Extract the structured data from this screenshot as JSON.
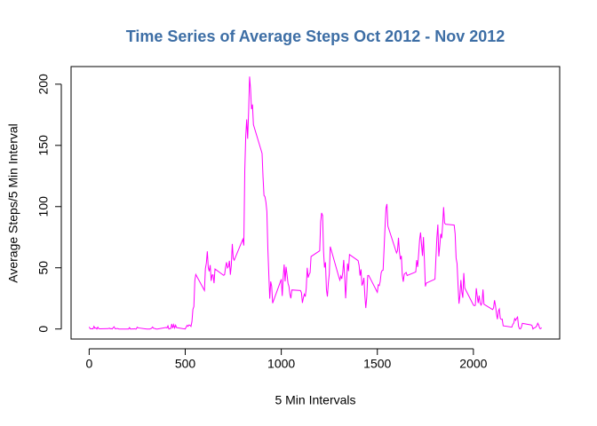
{
  "chart_data": {
    "type": "line",
    "title": "Time Series of Average Steps Oct 2012 - Nov 2012",
    "x_label": "5 Min Intervals",
    "y_label": "Average Steps/5 Min Interval",
    "xlim": [
      -94.2,
      2449.2
    ],
    "ylim": [
      -8.2,
      214.4
    ],
    "xticks": [
      0,
      500,
      1000,
      1500,
      2000
    ],
    "yticks": [
      0,
      50,
      100,
      150,
      200
    ],
    "series": [
      {
        "color": "#ff00ff",
        "x": [
          0,
          5,
          10,
          15,
          20,
          25,
          30,
          35,
          40,
          45,
          50,
          55,
          100,
          105,
          110,
          115,
          120,
          125,
          130,
          135,
          140,
          145,
          150,
          155,
          200,
          205,
          210,
          215,
          220,
          225,
          230,
          235,
          240,
          245,
          250,
          255,
          300,
          305,
          310,
          315,
          320,
          325,
          330,
          335,
          340,
          345,
          350,
          355,
          400,
          405,
          410,
          415,
          420,
          425,
          430,
          435,
          440,
          445,
          450,
          455,
          500,
          505,
          510,
          515,
          520,
          525,
          530,
          535,
          540,
          545,
          550,
          555,
          600,
          605,
          610,
          615,
          620,
          625,
          630,
          635,
          640,
          645,
          650,
          655,
          700,
          705,
          710,
          715,
          720,
          725,
          730,
          735,
          740,
          745,
          750,
          755,
          800,
          805,
          810,
          815,
          820,
          825,
          830,
          835,
          840,
          845,
          850,
          855,
          900,
          905,
          910,
          915,
          920,
          925,
          930,
          935,
          940,
          945,
          950,
          955,
          1000,
          1005,
          1010,
          1015,
          1020,
          1025,
          1030,
          1035,
          1040,
          1045,
          1050,
          1055,
          1100,
          1105,
          1110,
          1115,
          1120,
          1125,
          1130,
          1135,
          1140,
          1145,
          1150,
          1155,
          1200,
          1205,
          1210,
          1215,
          1220,
          1225,
          1230,
          1235,
          1240,
          1245,
          1250,
          1255,
          1300,
          1305,
          1310,
          1315,
          1320,
          1325,
          1330,
          1335,
          1340,
          1345,
          1350,
          1355,
          1400,
          1405,
          1410,
          1415,
          1420,
          1425,
          1430,
          1435,
          1440,
          1445,
          1450,
          1455,
          1500,
          1505,
          1510,
          1515,
          1520,
          1525,
          1530,
          1535,
          1540,
          1545,
          1550,
          1555,
          1600,
          1605,
          1610,
          1615,
          1620,
          1625,
          1630,
          1635,
          1640,
          1645,
          1650,
          1655,
          1700,
          1705,
          1710,
          1715,
          1720,
          1725,
          1730,
          1735,
          1740,
          1745,
          1750,
          1755,
          1800,
          1805,
          1810,
          1815,
          1820,
          1825,
          1830,
          1835,
          1840,
          1845,
          1850,
          1855,
          1900,
          1905,
          1910,
          1915,
          1920,
          1925,
          1930,
          1935,
          1940,
          1945,
          1950,
          1955,
          2000,
          2005,
          2010,
          2015,
          2020,
          2025,
          2030,
          2035,
          2040,
          2045,
          2050,
          2055,
          2100,
          2105,
          2110,
          2115,
          2120,
          2125,
          2130,
          2135,
          2140,
          2145,
          2150,
          2155,
          2200,
          2205,
          2210,
          2215,
          2220,
          2225,
          2230,
          2235,
          2240,
          2245,
          2250,
          2255,
          2300,
          2305,
          2310,
          2315,
          2320,
          2325,
          2330,
          2335,
          2340,
          2345,
          2350,
          2355
        ],
        "values": [
          1.7,
          0.3,
          0.1,
          0.2,
          0.1,
          2.1,
          0.5,
          0.9,
          0,
          1.5,
          0.3,
          0.1,
          0.3,
          0.7,
          0.2,
          0.3,
          0,
          1.1,
          1.8,
          0.2,
          0.2,
          0.4,
          0.3,
          0,
          0,
          0,
          1.1,
          0,
          0,
          0.1,
          0,
          0.2,
          0,
          0,
          1.5,
          0.9,
          0,
          0,
          0,
          0,
          0.2,
          0.6,
          1.6,
          0.6,
          0.5,
          0.1,
          0,
          0,
          1.2,
          0.9,
          2.6,
          0,
          0.3,
          0.4,
          4.1,
          0.7,
          3.5,
          0.8,
          3.1,
          1.1,
          0,
          1.6,
          3,
          2.2,
          3.3,
          3,
          2.1,
          6.1,
          16,
          18.3,
          39.5,
          44.5,
          31.5,
          49.3,
          53.8,
          63.5,
          50,
          47.1,
          52.2,
          39.3,
          44.1,
          44.2,
          37.4,
          49,
          43.8,
          44.4,
          50.5,
          54.5,
          49.9,
          51,
          55.7,
          44.3,
          52.3,
          69.5,
          57.8,
          56.2,
          73.4,
          68.2,
          129.4,
          157.5,
          171.2,
          155.4,
          177.3,
          206.2,
          195.9,
          179.6,
          183.4,
          167,
          143.5,
          124,
          109.1,
          108.1,
          103.7,
          96,
          66.2,
          45.2,
          24.8,
          38.8,
          35,
          21.1,
          40.6,
          27,
          42.4,
          52.7,
          38.9,
          50.8,
          44.3,
          37.4,
          34.7,
          28.3,
          25.1,
          31.9,
          31.4,
          29.7,
          21.3,
          25.5,
          28.4,
          26.5,
          33.4,
          50,
          42,
          44.6,
          46,
          59.2,
          63.9,
          87.7,
          94.8,
          92.8,
          63.4,
          50.2,
          54.5,
          32.4,
          26.5,
          37.7,
          45.1,
          67.3,
          42.3,
          39.9,
          43.3,
          41,
          46.2,
          56.4,
          42.8,
          25.1,
          40,
          53.5,
          47.3,
          60.8,
          55.8,
          52,
          43.6,
          48.7,
          35.5,
          37.5,
          41.8,
          27.5,
          17.1,
          26.1,
          43.6,
          43.8,
          30,
          36.1,
          35.5,
          38.8,
          46,
          47.8,
          48.1,
          65.3,
          82.9,
          98.7,
          102.1,
          84,
          62.1,
          64.1,
          74.5,
          63.2,
          56.9,
          59.8,
          43.9,
          38.6,
          44.7,
          45.5,
          46.2,
          43.7,
          46.6,
          56.3,
          50.7,
          61.2,
          72.7,
          78.9,
          68.9,
          59.7,
          75.1,
          56.5,
          34.8,
          37.5,
          40.7,
          58,
          74.7,
          85.3,
          59.3,
          67.8,
          77.7,
          74.2,
          85.3,
          99.5,
          86.6,
          85.6,
          84.9,
          77.8,
          58,
          53.4,
          36.3,
          20.7,
          27.4,
          40,
          30.2,
          25.5,
          45.7,
          33.5,
          19.6,
          19,
          19.3,
          33.3,
          26.8,
          21.2,
          27.3,
          21.3,
          19.5,
          21.3,
          32.3,
          20.2,
          15.9,
          17.2,
          23.5,
          19.2,
          12.5,
          8,
          14.7,
          16.3,
          8.7,
          7.8,
          8.1,
          2.6,
          1.5,
          3.7,
          4.8,
          8.5,
          7.1,
          8.7,
          9.8,
          2.2,
          0.3,
          0.1,
          1.6,
          4.6,
          3.3,
          2.8,
          0,
          0.8,
          1,
          1.6,
          2.6,
          4.7,
          3.3,
          0.6,
          0.2,
          1.1
        ]
      }
    ]
  }
}
